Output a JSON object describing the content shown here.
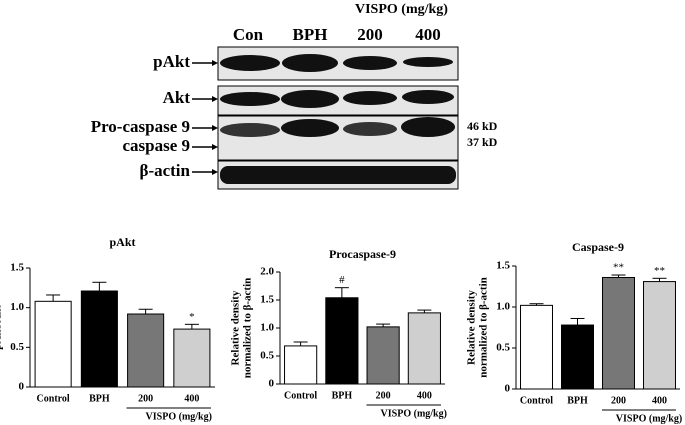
{
  "blot": {
    "header": "VISPO (mg/kg)",
    "lanes": [
      "Con",
      "BPH",
      "200",
      "400"
    ],
    "rows": [
      "pAkt",
      "Akt",
      "Pro-caspase 9",
      "caspase 9",
      "β-actin"
    ],
    "markers": [
      "46 kD",
      "37 kD"
    ]
  },
  "chart_data": [
    {
      "type": "bar",
      "title": "pAkt",
      "ylabel": [
        "pAkt/Akt"
      ],
      "categories": [
        "Control",
        "BPH",
        "200",
        "400"
      ],
      "group_label": "VISPO (mg/kg)",
      "values": [
        1.08,
        1.21,
        0.92,
        0.73
      ],
      "errors": [
        0.08,
        0.11,
        0.06,
        0.06
      ],
      "colors": [
        "#ffffff",
        "#000000",
        "#777777",
        "#cfcfcf"
      ],
      "ylim": [
        0,
        1.5
      ],
      "yticks": [
        0,
        0.5,
        {
          "value": 1,
          "label": "1.0"
        },
        1.5
      ],
      "annotations": [
        {
          "index": 3,
          "text": "*"
        }
      ]
    },
    {
      "type": "bar",
      "title": "Procaspase-9",
      "ylabel": [
        "Relative density",
        "normalized to β-actin"
      ],
      "categories": [
        "Control",
        "BPH",
        "200",
        "400"
      ],
      "group_label": "VISPO (mg/kg)",
      "values": [
        0.68,
        1.54,
        1.02,
        1.27
      ],
      "errors": [
        0.07,
        0.18,
        0.05,
        0.05
      ],
      "colors": [
        "#ffffff",
        "#000000",
        "#777777",
        "#cfcfcf"
      ],
      "ylim": [
        0,
        2
      ],
      "yticks": [
        0,
        0.5,
        {
          "value": 1,
          "label": "1.0"
        },
        1.5,
        {
          "value": 2,
          "label": "2.0"
        }
      ],
      "annotations": [
        {
          "index": 1,
          "text": "#"
        }
      ]
    },
    {
      "type": "bar",
      "title": "Caspase-9",
      "ylabel": [
        "Relative density",
        "normalized to β-actin"
      ],
      "categories": [
        "Control",
        "BPH",
        "200",
        "400"
      ],
      "group_label": "VISPO (mg/kg)",
      "values": [
        1.02,
        0.78,
        1.36,
        1.31
      ],
      "errors": [
        0.02,
        0.08,
        0.03,
        0.04
      ],
      "colors": [
        "#ffffff",
        "#000000",
        "#777777",
        "#cfcfcf"
      ],
      "ylim": [
        0,
        1.5
      ],
      "yticks": [
        0,
        0.5,
        {
          "value": 1,
          "label": "1.0"
        },
        1.5
      ],
      "annotations": [
        {
          "index": 2,
          "text": "**"
        },
        {
          "index": 3,
          "text": "**"
        }
      ]
    }
  ]
}
